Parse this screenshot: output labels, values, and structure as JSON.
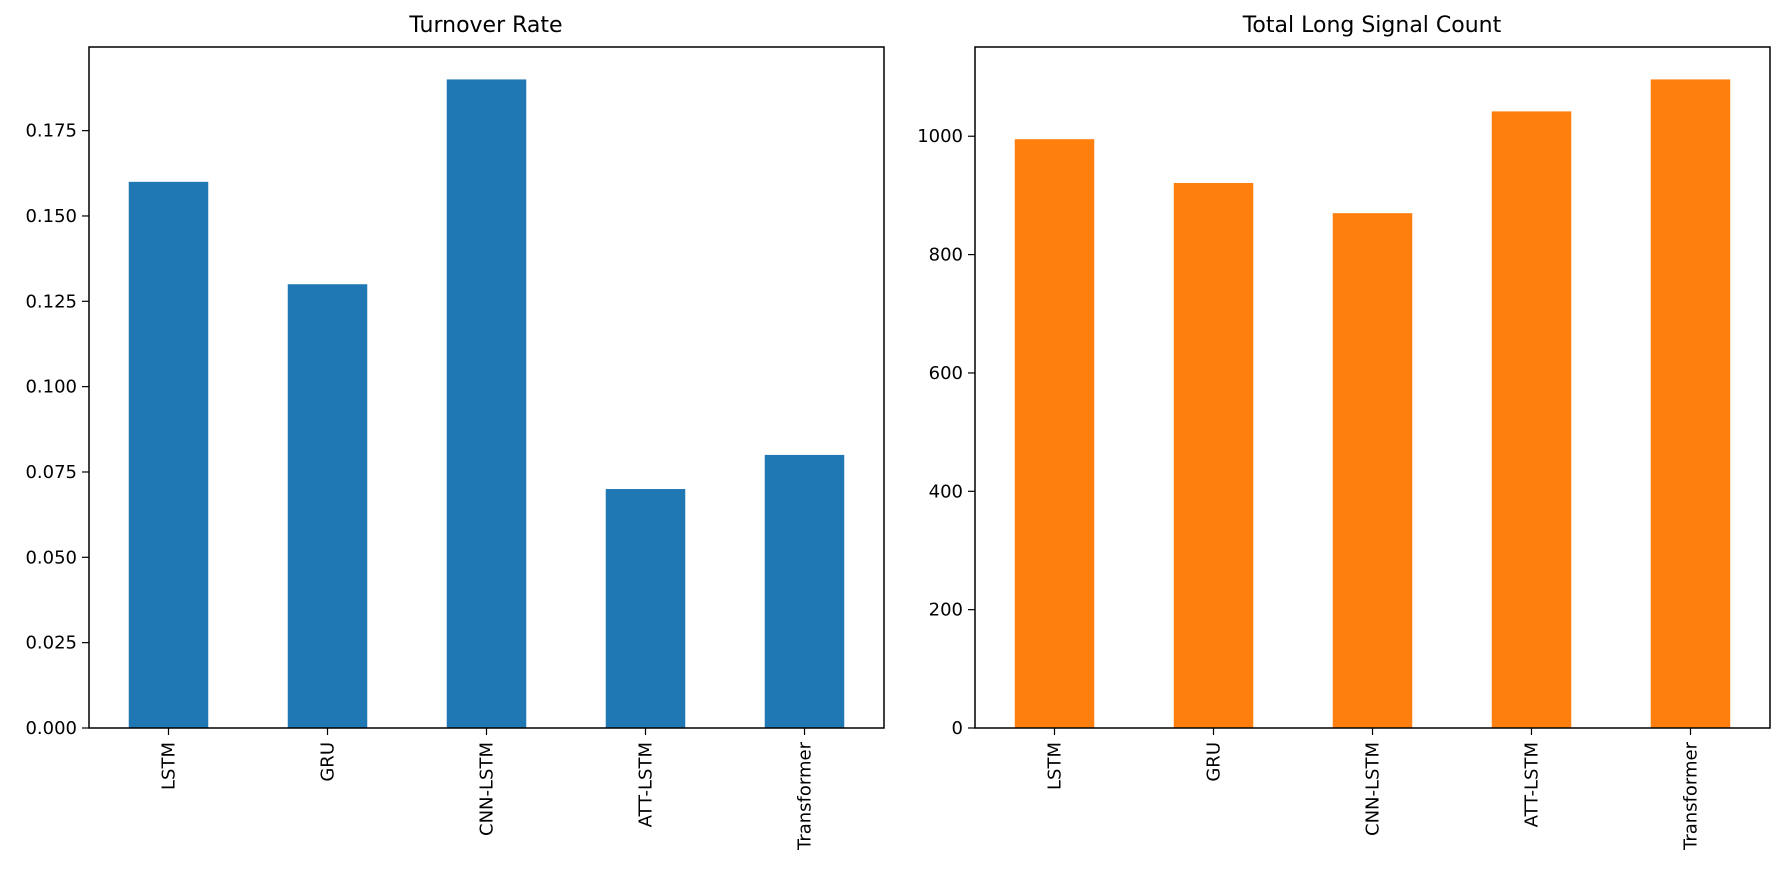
{
  "chart_data": [
    {
      "type": "bar",
      "title": "Turnover Rate",
      "xlabel": "",
      "ylabel": "",
      "categories": [
        "LSTM",
        "GRU",
        "CNN-LSTM",
        "ATT-LSTM",
        "Transformer"
      ],
      "values": [
        0.16,
        0.13,
        0.19,
        0.07,
        0.08
      ],
      "ylim": [
        0,
        0.1995
      ],
      "yticks": [
        0.0,
        0.025,
        0.05,
        0.075,
        0.1,
        0.125,
        0.15,
        0.175
      ],
      "ytick_labels": [
        "0.000",
        "0.025",
        "0.050",
        "0.075",
        "0.100",
        "0.125",
        "0.150",
        "0.175"
      ],
      "color": "#1f77b4",
      "grid": false,
      "legend": "none"
    },
    {
      "type": "bar",
      "title": "Total Long Signal Count",
      "xlabel": "",
      "ylabel": "",
      "categories": [
        "LSTM",
        "GRU",
        "CNN-LSTM",
        "ATT-LSTM",
        "Transformer"
      ],
      "values": [
        995,
        921,
        870,
        1042,
        1096
      ],
      "ylim": [
        0,
        1150.8
      ],
      "yticks": [
        0,
        200,
        400,
        600,
        800,
        1000
      ],
      "ytick_labels": [
        "0",
        "200",
        "400",
        "600",
        "800",
        "1000"
      ],
      "color": "#ff7f0e",
      "grid": false,
      "legend": "none"
    }
  ]
}
